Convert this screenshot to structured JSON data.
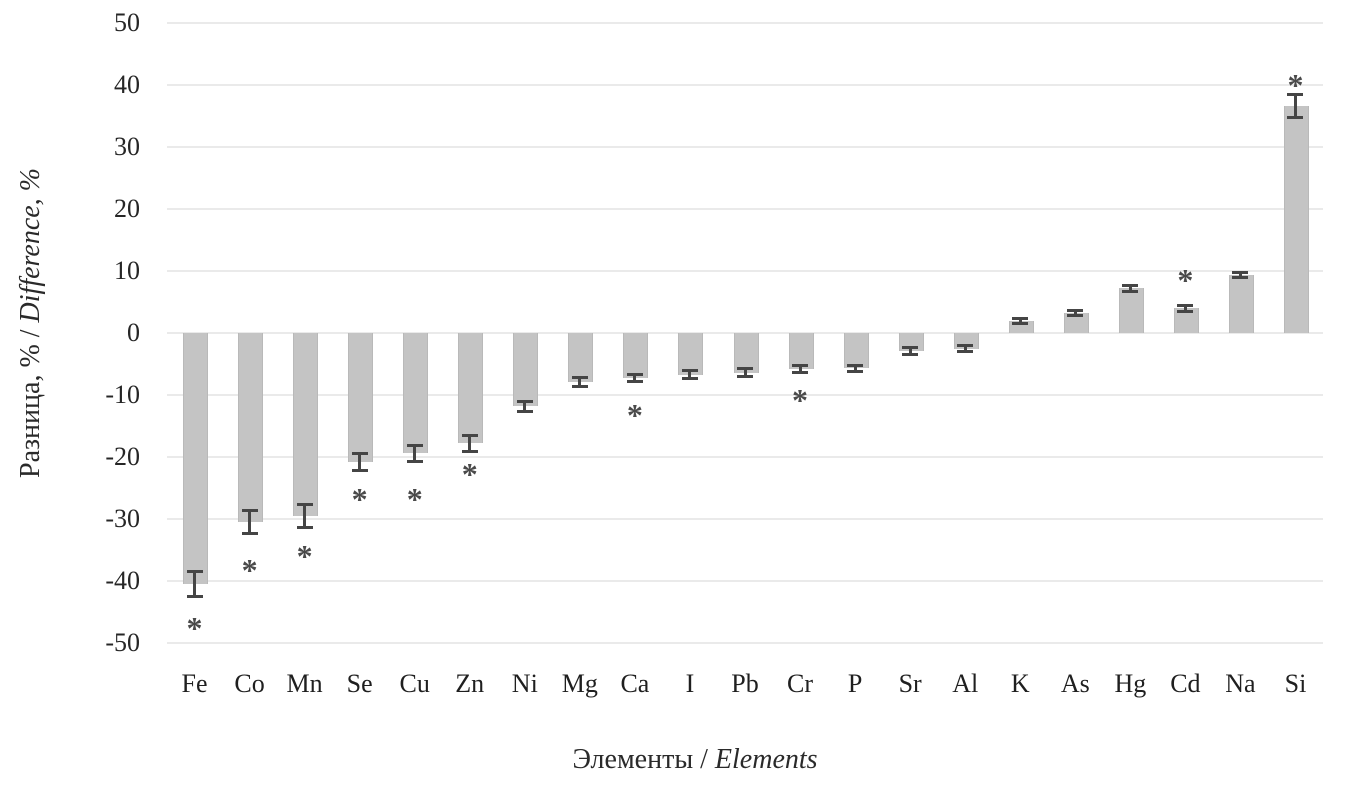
{
  "chart": {
    "y_axis": {
      "regular": "Разница, % / ",
      "italic": "Difference, %"
    },
    "x_axis": {
      "regular": "Элементы / ",
      "italic": "Elements"
    }
  },
  "chart_data": {
    "type": "bar",
    "title": "",
    "xlabel": "Элементы / Elements",
    "ylabel": "Разница, % / Difference, %",
    "ylim": [
      -50,
      50
    ],
    "yticks": [
      50,
      40,
      30,
      20,
      10,
      0,
      -10,
      -20,
      -30,
      -40,
      -50
    ],
    "grid": true,
    "legend": false,
    "significance_marker": "*",
    "bar_color": "#c4c4c4",
    "error_bar_color": "#454545",
    "grid_color": "#eaeaea",
    "text_color": "#262626",
    "categories": [
      "Fe",
      "Co",
      "Mn",
      "Se",
      "Cu",
      "Zn",
      "Ni",
      "Mg",
      "Ca",
      "I",
      "Pb",
      "Cr",
      "P",
      "Sr",
      "Al",
      "K",
      "As",
      "Hg",
      "Cd",
      "Na",
      "Si"
    ],
    "values": [
      -40.5,
      -30.5,
      -29.5,
      -20.8,
      -19.4,
      -17.8,
      -11.8,
      -7.9,
      -7.3,
      -6.7,
      -6.4,
      -5.8,
      -5.7,
      -2.9,
      -2.5,
      2.0,
      3.2,
      7.2,
      4.0,
      9.4,
      36.6
    ],
    "errors": [
      2.0,
      1.8,
      1.8,
      1.4,
      1.3,
      1.3,
      0.8,
      0.8,
      0.6,
      0.6,
      0.6,
      0.5,
      0.5,
      0.5,
      0.5,
      0.4,
      0.4,
      0.5,
      0.5,
      0.4,
      1.8
    ],
    "star_positions": [
      -46.3,
      -37.0,
      -34.8,
      -25.6,
      -25.5,
      -21.6,
      null,
      null,
      -12.0,
      null,
      null,
      -9.6,
      null,
      null,
      null,
      null,
      null,
      null,
      9.7,
      null,
      41.2
    ]
  }
}
